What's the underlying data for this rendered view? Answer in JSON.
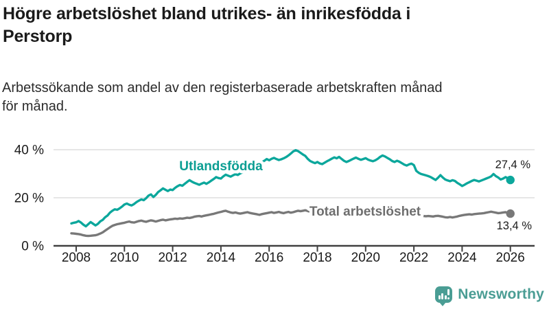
{
  "header": {
    "title_lines": [
      "Högre arbetslöshet bland utrikes- än inrikesfödda i",
      "Perstorp"
    ],
    "subtitle_lines": [
      "Arbetssökande som andel av den registerbaserade arbetskraften månad",
      "för månad."
    ]
  },
  "footer": {
    "brand": "Newsworthy",
    "brand_color": "#4A9D94"
  },
  "chart_data": {
    "type": "line",
    "unit": "%",
    "grid": "horizontal gridlines on",
    "legend_position": "inline labels on lines",
    "x_axis": {
      "ticks": [
        2008,
        2010,
        2012,
        2014,
        2016,
        2018,
        2020,
        2022,
        2024,
        2026
      ],
      "range": [
        2007.1,
        2027.0
      ]
    },
    "y_axis": {
      "ticks": [
        0,
        20,
        40
      ],
      "tick_labels": [
        "0 %",
        "20 %",
        "40 %"
      ],
      "range": [
        0,
        44
      ]
    },
    "series": [
      {
        "name": "Utlandsfödda",
        "color": "#0CA79C",
        "label_color": "#0B9E93",
        "end_label": "27,4 %",
        "last_value": 27.4,
        "start": 2007.8,
        "step": 0.1,
        "values": [
          9.3,
          9.6,
          9.8,
          10.3,
          9.7,
          8.8,
          8.1,
          9.0,
          9.9,
          9.2,
          8.5,
          9.1,
          10.2,
          10.8,
          11.9,
          12.6,
          13.8,
          14.6,
          15.2,
          15.0,
          15.6,
          16.3,
          17.2,
          17.6,
          17.1,
          16.8,
          17.4,
          18.2,
          18.8,
          19.3,
          19.0,
          19.8,
          20.9,
          21.4,
          20.3,
          21.2,
          22.4,
          23.1,
          23.9,
          23.3,
          22.8,
          23.4,
          23.2,
          24.1,
          24.8,
          25.3,
          25.0,
          25.8,
          26.6,
          27.3,
          26.7,
          26.2,
          25.8,
          25.4,
          25.9,
          26.3,
          25.8,
          26.4,
          27.1,
          27.8,
          28.6,
          28.2,
          28.0,
          28.9,
          29.6,
          29.2,
          28.8,
          29.3,
          29.8,
          29.5,
          30.1,
          30.6,
          31.0,
          31.5,
          32.1,
          32.6,
          33.0,
          33.6,
          34.2,
          34.8,
          35.4,
          36.1,
          35.6,
          36.2,
          36.6,
          36.1,
          35.7,
          36.0,
          36.4,
          36.9,
          37.6,
          38.4,
          39.3,
          39.8,
          39.4,
          38.7,
          38.0,
          37.4,
          36.2,
          35.3,
          34.8,
          34.4,
          34.9,
          34.3,
          34.0,
          34.6,
          35.2,
          35.7,
          36.3,
          36.8,
          36.4,
          37.0,
          36.2,
          35.4,
          34.9,
          35.3,
          35.8,
          36.3,
          36.7,
          36.2,
          35.8,
          36.1,
          36.5,
          35.9,
          35.5,
          35.2,
          35.6,
          36.2,
          37.0,
          37.6,
          37.2,
          36.6,
          36.0,
          35.3,
          34.9,
          35.4,
          35.0,
          34.4,
          33.8,
          33.4,
          33.9,
          34.2,
          33.6,
          31.2,
          30.4,
          29.9,
          29.6,
          29.3,
          29.0,
          28.6,
          28.0,
          27.4,
          28.3,
          29.4,
          28.4,
          27.6,
          27.2,
          26.9,
          27.3,
          27.0,
          26.2,
          25.6,
          24.9,
          25.4,
          26.0,
          26.5,
          27.0,
          27.4,
          27.1,
          26.8,
          27.2,
          27.6,
          28.0,
          28.4,
          28.9,
          29.9,
          29.0,
          28.4,
          27.6,
          28.0,
          28.6,
          28.1,
          27.4
        ]
      },
      {
        "name": "Total arbetslöshet",
        "color": "#787878",
        "label_color": "#6E6E6E",
        "end_label": "13,4 %",
        "last_value": 13.4,
        "start": 2007.8,
        "step": 0.1,
        "values": [
          5.2,
          5.1,
          5.0,
          4.9,
          4.7,
          4.4,
          4.2,
          4.1,
          4.2,
          4.3,
          4.4,
          4.7,
          5.1,
          5.6,
          6.3,
          7.0,
          7.7,
          8.3,
          8.7,
          9.0,
          9.2,
          9.4,
          9.6,
          9.9,
          10.1,
          9.8,
          9.7,
          10.0,
          10.3,
          10.5,
          10.2,
          10.0,
          10.3,
          10.6,
          10.4,
          10.1,
          10.4,
          10.7,
          10.9,
          10.6,
          10.8,
          11.0,
          11.1,
          11.3,
          11.2,
          11.4,
          11.3,
          11.5,
          11.7,
          11.6,
          11.8,
          12.1,
          12.3,
          12.4,
          12.2,
          12.5,
          12.7,
          12.9,
          13.1,
          13.3,
          13.6,
          13.9,
          14.1,
          14.4,
          14.6,
          14.2,
          13.9,
          13.7,
          13.9,
          13.6,
          13.4,
          13.6,
          13.8,
          14.0,
          13.7,
          13.5,
          13.3,
          13.1,
          12.9,
          13.2,
          13.4,
          13.6,
          13.8,
          14.0,
          13.7,
          13.9,
          14.1,
          13.8,
          13.6,
          13.9,
          14.1,
          13.8,
          14.0,
          14.3,
          14.6,
          14.4,
          14.6,
          14.8,
          14.5,
          14.2,
          14.0,
          13.8,
          13.9,
          13.7,
          13.5,
          13.7,
          13.9,
          14.0,
          14.2,
          14.1,
          13.9,
          13.7,
          13.8,
          13.6,
          13.5,
          13.7,
          13.8,
          13.9,
          14.0,
          13.8,
          13.9,
          14.0,
          13.9,
          14.1,
          14.3,
          14.2,
          14.4,
          14.5,
          14.3,
          14.1,
          14.0,
          13.8,
          13.7,
          13.5,
          13.4,
          13.3,
          13.2,
          13.1,
          13.0,
          12.9,
          12.8,
          12.9,
          12.8,
          12.7,
          12.6,
          12.5,
          12.4,
          12.3,
          12.4,
          12.3,
          12.2,
          12.4,
          12.5,
          12.3,
          12.1,
          11.9,
          11.8,
          12.0,
          11.8,
          12.0,
          12.2,
          12.5,
          12.7,
          12.9,
          13.0,
          13.1,
          13.0,
          13.2,
          13.3,
          13.4,
          13.5,
          13.6,
          13.8,
          14.0,
          14.2,
          14.0,
          13.8,
          13.6,
          13.7,
          13.9,
          14.0,
          13.7,
          13.4
        ]
      }
    ]
  }
}
